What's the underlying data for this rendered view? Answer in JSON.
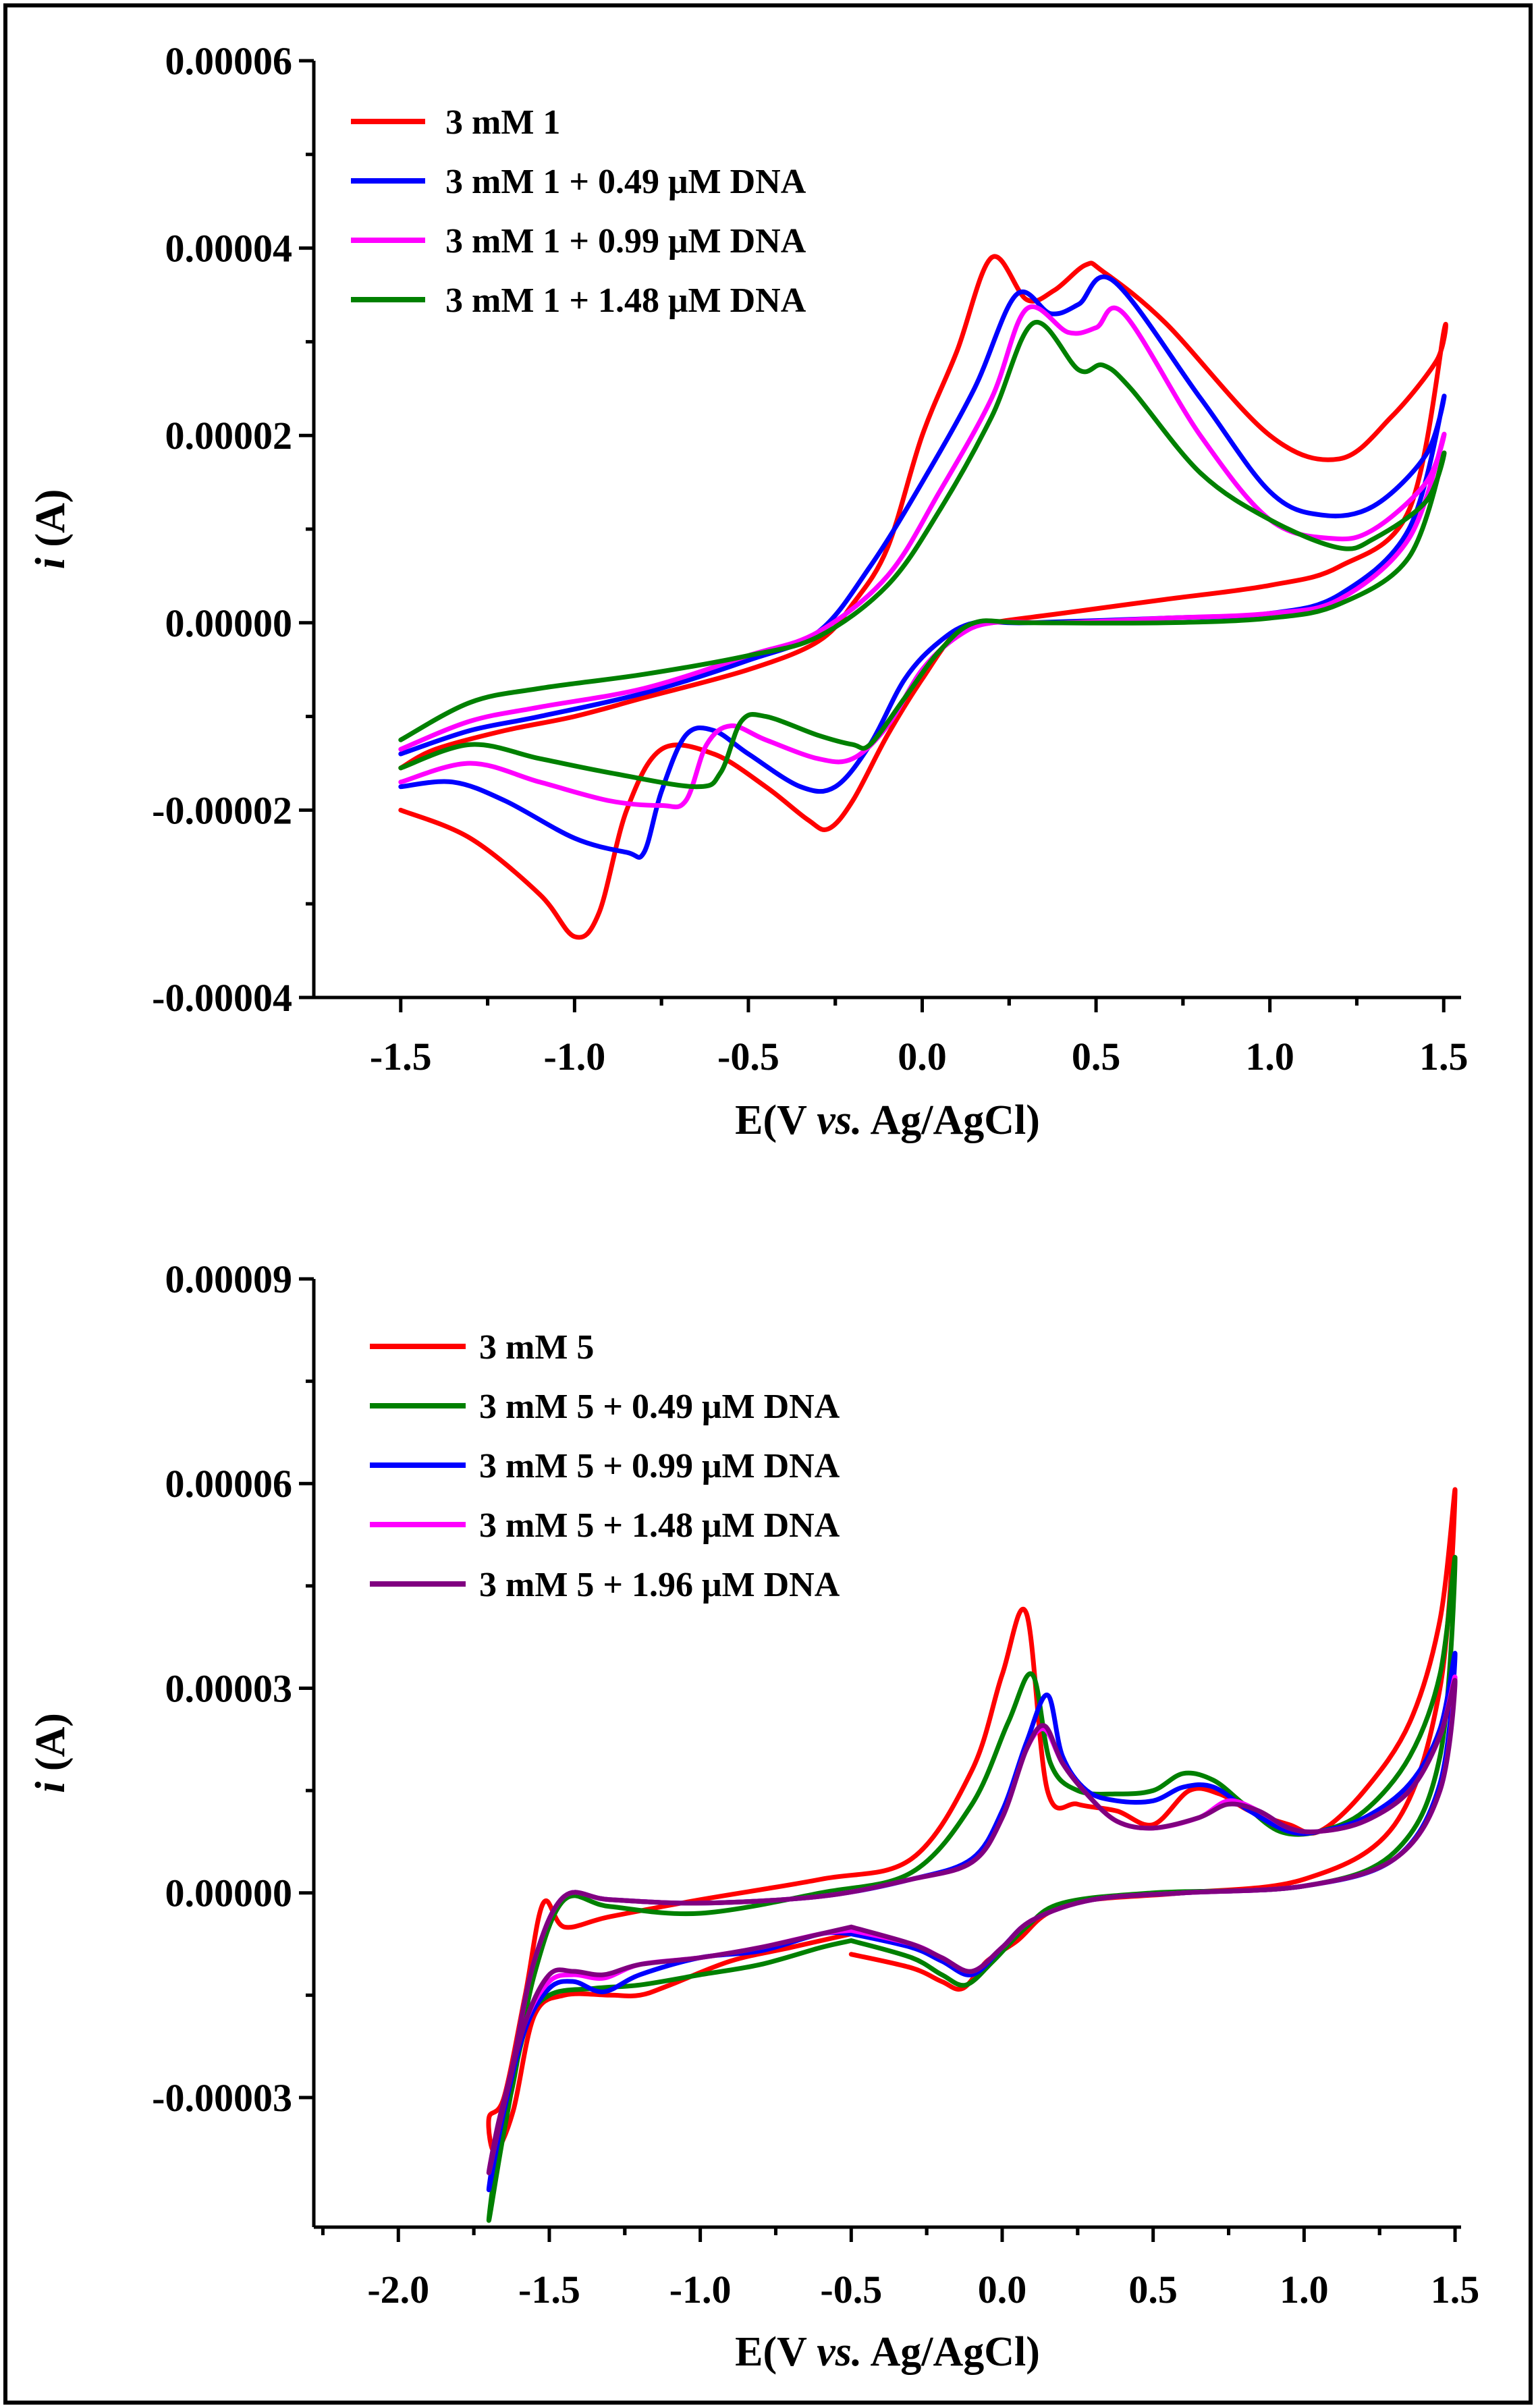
{
  "chart_data": [
    {
      "type": "line",
      "title": "",
      "xlabel": {
        "pre": "E(V ",
        "italic": "vs.",
        "post": " Ag/AgCl)"
      },
      "ylabel": {
        "italic": "i",
        "rest": " (A)"
      },
      "xlim": [
        -1.75,
        1.55
      ],
      "ylim": [
        -4e-05,
        6e-05
      ],
      "xticks": [
        -1.5,
        -1.0,
        -0.5,
        0.0,
        0.5,
        1.0,
        1.5
      ],
      "xtick_labels": [
        "-1.5",
        "-1.0",
        "-0.5",
        "0.0",
        "0.5",
        "1.0",
        "1.5"
      ],
      "yticks": [
        -4e-05,
        -2e-05,
        0.0,
        2e-05,
        4e-05,
        6e-05
      ],
      "ytick_labels": [
        "-0.00004",
        "-0.00002",
        "0.00000",
        "0.00002",
        "0.00004",
        "0.00006"
      ],
      "legend_position": "top-left",
      "series": [
        {
          "name": "3 mM 1",
          "color": "#ff0000",
          "x": [
            -1.5,
            -1.3,
            -1.1,
            -1.0,
            -0.93,
            -0.85,
            -0.75,
            -0.6,
            -0.45,
            -0.33,
            -0.27,
            -0.2,
            -0.1,
            0.0,
            0.1,
            0.2,
            0.4,
            0.7,
            1.0,
            1.2,
            1.4,
            1.5,
            1.48,
            1.35,
            1.2,
            1.0,
            0.7,
            0.52,
            0.47,
            0.38,
            0.3,
            0.2,
            0.1,
            0.0,
            -0.1,
            -0.2,
            -0.3,
            -0.5,
            -0.8,
            -1.0,
            -1.2,
            -1.4,
            -1.5
          ],
          "y": [
            -2e-05,
            -2.3e-05,
            -2.9e-05,
            -3.35e-05,
            -3.1e-05,
            -2e-05,
            -1.35e-05,
            -1.4e-05,
            -1.75e-05,
            -2.1e-05,
            -2.2e-05,
            -1.9e-05,
            -1.2e-05,
            -6e-06,
            -1e-06,
            0.0,
            1e-06,
            2.5e-06,
            4e-06,
            6e-06,
            1.2e-05,
            3.1e-05,
            2.8e-05,
            2.2e-05,
            1.75e-05,
            2e-05,
            3.2e-05,
            3.75e-05,
            3.82e-05,
            3.55e-05,
            3.45e-05,
            3.9e-05,
            2.9e-05,
            2e-05,
            8e-06,
            2e-06,
            -2e-06,
            -5e-06,
            -8e-06,
            -1e-05,
            -1.15e-05,
            -1.35e-05,
            -1.55e-05
          ]
        },
        {
          "name": "3 mM 1 + 0.49 μM DNA",
          "color": "#0000ff",
          "x": [
            -1.5,
            -1.35,
            -1.2,
            -1.0,
            -0.85,
            -0.8,
            -0.75,
            -0.68,
            -0.6,
            -0.5,
            -0.35,
            -0.25,
            -0.15,
            -0.05,
            0.05,
            0.15,
            0.3,
            0.7,
            1.0,
            1.2,
            1.4,
            1.5,
            1.45,
            1.3,
            1.15,
            1.0,
            0.8,
            0.55,
            0.45,
            0.37,
            0.27,
            0.15,
            0.0,
            -0.15,
            -0.3,
            -0.5,
            -0.8,
            -1.1,
            -1.3,
            -1.5
          ],
          "y": [
            -1.75e-05,
            -1.7e-05,
            -1.9e-05,
            -2.3e-05,
            -2.45e-05,
            -2.45e-05,
            -1.8e-05,
            -1.2e-05,
            -1.15e-05,
            -1.4e-05,
            -1.75e-05,
            -1.75e-05,
            -1.3e-05,
            -6e-06,
            -2e-06,
            0.0,
            0.0,
            5e-07,
            1e-06,
            3e-06,
            1e-05,
            2.4e-05,
            1.8e-05,
            1.25e-05,
            1.15e-05,
            1.4e-05,
            2.4e-05,
            3.65e-05,
            3.4e-05,
            3.3e-05,
            3.5e-05,
            2.5e-05,
            1.5e-05,
            6e-06,
            -1e-06,
            -4e-06,
            -7.5e-06,
            -1e-05,
            -1.15e-05,
            -1.4e-05
          ]
        },
        {
          "name": "3 mM 1 + 0.99 μM DNA",
          "color": "#ff00ff",
          "x": [
            -1.5,
            -1.3,
            -1.1,
            -0.9,
            -0.75,
            -0.68,
            -0.62,
            -0.55,
            -0.45,
            -0.3,
            -0.2,
            -0.1,
            0.0,
            0.1,
            0.2,
            0.4,
            0.7,
            1.0,
            1.2,
            1.4,
            1.5,
            1.45,
            1.3,
            1.18,
            1.0,
            0.8,
            0.58,
            0.5,
            0.42,
            0.3,
            0.2,
            0.05,
            -0.1,
            -0.3,
            -0.5,
            -0.8,
            -1.1,
            -1.3,
            -1.5
          ],
          "y": [
            -1.7e-05,
            -1.5e-05,
            -1.7e-05,
            -1.9e-05,
            -1.95e-05,
            -1.9e-05,
            -1.3e-05,
            -1.1e-05,
            -1.25e-05,
            -1.45e-05,
            -1.45e-05,
            -1.1e-05,
            -5e-06,
            -1.5e-06,
            0.0,
            0.0,
            5e-07,
            1e-06,
            2.5e-06,
            9e-06,
            2e-05,
            1.5e-05,
            1e-05,
            9e-06,
            1.1e-05,
            2e-05,
            3.3e-05,
            3.15e-05,
            3.1e-05,
            3.35e-05,
            2.4e-05,
            1.4e-05,
            5e-06,
            -1e-06,
            -3.5e-06,
            -7e-06,
            -9e-06,
            -1.05e-05,
            -1.35e-05
          ]
        },
        {
          "name": "3 mM 1 + 1.48 μM DNA",
          "color": "#008000",
          "x": [
            -1.5,
            -1.3,
            -1.1,
            -0.9,
            -0.65,
            -0.58,
            -0.52,
            -0.45,
            -0.3,
            -0.2,
            -0.15,
            -0.05,
            0.05,
            0.15,
            0.3,
            0.7,
            1.0,
            1.2,
            1.4,
            1.5,
            1.45,
            1.3,
            1.2,
            1.0,
            0.8,
            0.6,
            0.52,
            0.45,
            0.32,
            0.2,
            0.05,
            -0.1,
            -0.3,
            -0.5,
            -0.8,
            -1.1,
            -1.3,
            -1.5
          ],
          "y": [
            -1.55e-05,
            -1.3e-05,
            -1.45e-05,
            -1.6e-05,
            -1.75e-05,
            -1.6e-05,
            -1.05e-05,
            -1e-05,
            -1.2e-05,
            -1.3e-05,
            -1.3e-05,
            -8e-06,
            -3e-06,
            0.0,
            0.0,
            0.0,
            5e-07,
            2e-06,
            7e-06,
            1.8e-05,
            1.3e-05,
            9e-06,
            8e-06,
            1.1e-05,
            1.6e-05,
            2.5e-05,
            2.75e-05,
            2.7e-05,
            3.2e-05,
            2.2e-05,
            1.2e-05,
            4e-06,
            -1.5e-06,
            -3.5e-06,
            -5.5e-06,
            -7e-06,
            -8.5e-06,
            -1.25e-05
          ]
        }
      ]
    },
    {
      "type": "line",
      "title": "",
      "xlabel": {
        "pre": "E(V ",
        "italic": "vs.",
        "post": " Ag/AgCl)"
      },
      "ylabel": {
        "italic": "i",
        "rest": " (A)"
      },
      "xlim": [
        -2.28,
        1.52
      ],
      "ylim": [
        -4.9e-05,
        9e-05
      ],
      "xticks": [
        -2.0,
        -1.5,
        -1.0,
        -0.5,
        0.0,
        0.5,
        1.0,
        1.5
      ],
      "xtick_labels": [
        "-2.0",
        "-1.5",
        "-1.0",
        "-0.5",
        "0.0",
        "0.5",
        "1.0",
        "1.5"
      ],
      "yticks": [
        -3e-05,
        0.0,
        3e-05,
        6e-05,
        9e-05
      ],
      "ytick_labels": [
        "-0.00003",
        "0.00000",
        "0.00003",
        "0.00006",
        "0.00009"
      ],
      "legend_position": "top-left",
      "series": [
        {
          "name": "3 mM 5",
          "color": "#ff0000",
          "x": [
            -0.5,
            -0.3,
            -0.2,
            -0.13,
            -0.05,
            0.05,
            0.15,
            0.3,
            0.6,
            1.0,
            1.3,
            1.45,
            1.5,
            1.45,
            1.35,
            1.2,
            1.05,
            0.95,
            0.82,
            0.72,
            0.62,
            0.5,
            0.38,
            0.25,
            0.15,
            0.08,
            0.0,
            -0.1,
            -0.3,
            -0.6,
            -1.0,
            -1.3,
            -1.45,
            -1.52,
            -1.58,
            -1.65,
            -1.7,
            -1.68,
            -1.62,
            -1.55,
            -1.45,
            -1.3,
            -1.2,
            -1.1,
            -0.9,
            -0.7,
            -0.5
          ],
          "y": [
            -9e-06,
            -1.1e-05,
            -1.3e-05,
            -1.4e-05,
            -1e-05,
            -7e-06,
            -3e-06,
            -1e-06,
            0.0,
            2e-06,
            1e-05,
            3e-05,
            5.9e-05,
            4e-05,
            2.5e-05,
            1.5e-05,
            9e-06,
            1e-05,
            1.2e-05,
            1.45e-05,
            1.5e-05,
            1e-05,
            1.2e-05,
            1.3e-05,
            1.5e-05,
            4.1e-05,
            3.2e-05,
            1.8e-05,
            5e-06,
            2e-06,
            -1e-06,
            -3.5e-06,
            -5e-06,
            -1.5e-06,
            -1.5e-05,
            -3e-05,
            -3.3e-05,
            -3.8e-05,
            -3.2e-05,
            -1.8e-05,
            -1.5e-05,
            -1.5e-05,
            -1.5e-05,
            -1.35e-05,
            -1e-05,
            -8e-06,
            -6e-06
          ]
        },
        {
          "name": "3 mM 5 + 0.49 μM DNA",
          "color": "#008000",
          "x": [
            -0.5,
            -0.3,
            -0.2,
            -0.12,
            -0.03,
            0.08,
            0.2,
            0.5,
            1.0,
            1.3,
            1.45,
            1.5,
            1.45,
            1.35,
            1.2,
            1.05,
            0.92,
            0.8,
            0.7,
            0.6,
            0.5,
            0.38,
            0.25,
            0.16,
            0.1,
            0.02,
            -0.1,
            -0.3,
            -0.6,
            -1.0,
            -1.3,
            -1.45,
            -1.55,
            -1.62,
            -1.67,
            -1.7,
            -1.65,
            -1.58,
            -1.5,
            -1.35,
            -1.2,
            -1.0,
            -0.8,
            -0.6,
            -0.5
          ],
          "y": [
            -7e-06,
            -9.5e-06,
            -1.2e-05,
            -1.35e-05,
            -1e-05,
            -5e-06,
            -1.5e-06,
            0.0,
            1e-06,
            6e-06,
            2e-05,
            4.9e-05,
            3.2e-05,
            2e-05,
            1.2e-05,
            9e-06,
            9e-06,
            1.3e-05,
            1.65e-05,
            1.75e-05,
            1.5e-05,
            1.45e-05,
            1.5e-05,
            1.9e-05,
            3.2e-05,
            2.5e-05,
            1.3e-05,
            3e-06,
            0.0,
            -3e-06,
            -2e-06,
            -1e-06,
            -1.2e-05,
            -2.8e-05,
            -3.8e-05,
            -4.8e-05,
            -3.5e-05,
            -2e-05,
            -1.5e-05,
            -1.4e-05,
            -1.35e-05,
            -1.2e-05,
            -1.05e-05,
            -8e-06,
            -7e-06
          ]
        },
        {
          "name": "3 mM 5 + 0.99 μM DNA",
          "color": "#0000ff",
          "x": [
            -0.5,
            -0.3,
            -0.2,
            -0.1,
            0.0,
            0.1,
            0.3,
            0.6,
            1.0,
            1.3,
            1.45,
            1.5,
            1.45,
            1.35,
            1.2,
            1.05,
            0.95,
            0.82,
            0.7,
            0.6,
            0.5,
            0.38,
            0.28,
            0.2,
            0.15,
            0.08,
            0.0,
            -0.1,
            -0.3,
            -0.6,
            -1.0,
            -1.3,
            -1.45,
            -1.55,
            -1.62,
            -1.67,
            -1.7,
            -1.65,
            -1.58,
            -1.5,
            -1.42,
            -1.32,
            -1.2,
            -1.0,
            -0.8,
            -0.6,
            -0.5
          ],
          "y": [
            -6e-06,
            -8e-06,
            -1e-05,
            -1.2e-05,
            -8e-06,
            -4e-06,
            -1e-06,
            0.0,
            1e-06,
            5e-06,
            1.6e-05,
            3.5e-05,
            2.4e-05,
            1.6e-05,
            1.1e-05,
            9e-06,
            9e-06,
            1.2e-05,
            1.55e-05,
            1.55e-05,
            1.35e-05,
            1.35e-05,
            1.5e-05,
            2e-05,
            2.9e-05,
            2.2e-05,
            1.2e-05,
            5e-06,
            2e-06,
            -5e-07,
            -1.5e-06,
            -1e-06,
            -5e-07,
            -1e-05,
            -2.5e-05,
            -3.5e-05,
            -4.35e-05,
            -3.2e-05,
            -2e-05,
            -1.4e-05,
            -1.3e-05,
            -1.45e-05,
            -1.2e-05,
            -9.5e-06,
            -8.5e-06,
            -6e-06,
            -6e-06
          ]
        },
        {
          "name": "3 mM 5 + 1.48 μM DNA",
          "color": "#ff00ff",
          "x": [
            -0.5,
            -0.3,
            -0.2,
            -0.1,
            0.0,
            0.1,
            0.3,
            0.6,
            1.0,
            1.3,
            1.45,
            1.5,
            1.45,
            1.35,
            1.2,
            1.05,
            0.95,
            0.85,
            0.75,
            0.65,
            0.5,
            0.38,
            0.28,
            0.2,
            0.14,
            0.08,
            0.0,
            -0.1,
            -0.3,
            -0.6,
            -1.0,
            -1.3,
            -1.45,
            -1.55,
            -1.62,
            -1.67,
            -1.7,
            -1.65,
            -1.58,
            -1.5,
            -1.42,
            -1.32,
            -1.2,
            -1.0,
            -0.8,
            -0.6,
            -0.5
          ],
          "y": [
            -5.5e-06,
            -7.5e-06,
            -9.5e-06,
            -1.15e-05,
            -8e-06,
            -4e-06,
            -1e-06,
            0.0,
            1e-06,
            5e-06,
            1.5e-05,
            3.15e-05,
            2.3e-05,
            1.5e-05,
            1.05e-05,
            9e-06,
            9.5e-06,
            1.2e-05,
            1.35e-05,
            1.1e-05,
            9.5e-06,
            1.05e-05,
            1.45e-05,
            1.9e-05,
            2.4e-05,
            2.1e-05,
            1.1e-05,
            4.5e-06,
            2e-06,
            -5e-07,
            -1.5e-06,
            -1e-06,
            -5e-07,
            -1e-05,
            -2.5e-05,
            -3.4e-05,
            -4.1e-05,
            -3.1e-05,
            -1.9e-05,
            -1.3e-05,
            -1.2e-05,
            -1.25e-05,
            -1.05e-05,
            -9.5e-06,
            -8e-06,
            -6e-06,
            -5.5e-06
          ]
        },
        {
          "name": "3 mM 5 + 1.96 μM DNA",
          "color": "#800080",
          "x": [
            -0.5,
            -0.3,
            -0.2,
            -0.1,
            0.0,
            0.1,
            0.3,
            0.6,
            1.0,
            1.3,
            1.45,
            1.5,
            1.45,
            1.35,
            1.2,
            1.05,
            0.95,
            0.85,
            0.75,
            0.65,
            0.5,
            0.38,
            0.28,
            0.2,
            0.14,
            0.08,
            0.0,
            -0.1,
            -0.3,
            -0.6,
            -1.0,
            -1.3,
            -1.45,
            -1.55,
            -1.62,
            -1.67,
            -1.7,
            -1.65,
            -1.58,
            -1.5,
            -1.42,
            -1.32,
            -1.2,
            -1.0,
            -0.8,
            -0.6,
            -0.5
          ],
          "y": [
            -5e-06,
            -7.5e-06,
            -9.5e-06,
            -1.15e-05,
            -8e-06,
            -4e-06,
            -1e-06,
            0.0,
            1e-06,
            5e-06,
            1.5e-05,
            3.1e-05,
            2.3e-05,
            1.5e-05,
            1.05e-05,
            9e-06,
            9.5e-06,
            1.2e-05,
            1.3e-05,
            1.1e-05,
            9.5e-06,
            1.05e-05,
            1.45e-05,
            1.9e-05,
            2.45e-05,
            2.1e-05,
            1.1e-05,
            4.5e-06,
            2e-06,
            -5e-07,
            -1.5e-06,
            -1e-06,
            -5e-07,
            -1e-05,
            -2.5e-05,
            -3.4e-05,
            -4.1e-05,
            -3.1e-05,
            -1.9e-05,
            -1.2e-05,
            -1.15e-05,
            -1.2e-05,
            -1.05e-05,
            -9.5e-06,
            -8e-06,
            -6e-06,
            -5e-06
          ]
        }
      ]
    }
  ]
}
